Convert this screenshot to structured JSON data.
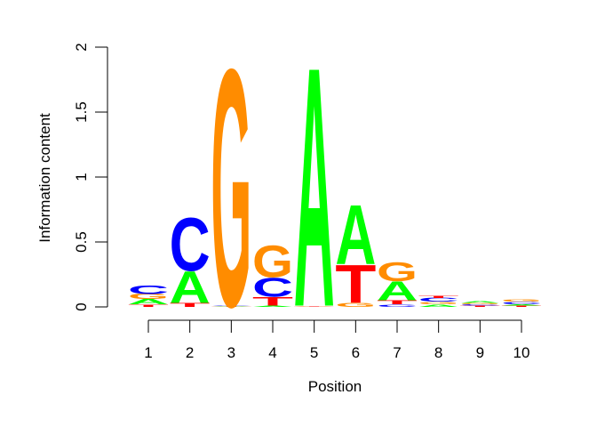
{
  "chart_data": {
    "type": "sequence-logo",
    "xlabel": "Position",
    "ylabel": "Information content",
    "ylim": [
      0,
      2
    ],
    "yticks": [
      "0",
      "0.5",
      "1",
      "1.5",
      "2"
    ],
    "positions": [
      "1",
      "2",
      "3",
      "4",
      "5",
      "6",
      "7",
      "8",
      "9",
      "10"
    ],
    "colors": {
      "A": "#00FF00",
      "C": "#0000FF",
      "G": "#FF8C00",
      "T": "#FF0000"
    },
    "stacks": [
      [
        {
          "letter": "T",
          "value": 0.02
        },
        {
          "letter": "A",
          "value": 0.04
        },
        {
          "letter": "G",
          "value": 0.04
        },
        {
          "letter": "C",
          "value": 0.07
        }
      ],
      [
        {
          "letter": "T",
          "value": 0.03
        },
        {
          "letter": "A",
          "value": 0.25
        },
        {
          "letter": "C",
          "value": 0.42
        }
      ],
      [
        {
          "letter": "T",
          "value": 0.003
        },
        {
          "letter": "A",
          "value": 0.005
        },
        {
          "letter": "C",
          "value": 0.005
        },
        {
          "letter": "G",
          "value": 1.88
        }
      ],
      [
        {
          "letter": "A",
          "value": 0.01
        },
        {
          "letter": "T",
          "value": 0.07
        },
        {
          "letter": "C",
          "value": 0.15
        },
        {
          "letter": "G",
          "value": 0.25
        }
      ],
      [
        {
          "letter": "C",
          "value": 0.002
        },
        {
          "letter": "G",
          "value": 0.003
        },
        {
          "letter": "T",
          "value": 0.005
        },
        {
          "letter": "A",
          "value": 1.9
        }
      ],
      [
        {
          "letter": "G",
          "value": 0.03
        },
        {
          "letter": "T",
          "value": 0.3
        },
        {
          "letter": "A",
          "value": 0.47
        }
      ],
      [
        {
          "letter": "C",
          "value": 0.02
        },
        {
          "letter": "T",
          "value": 0.03
        },
        {
          "letter": "A",
          "value": 0.15
        },
        {
          "letter": "G",
          "value": 0.15
        }
      ],
      [
        {
          "letter": "A",
          "value": 0.02
        },
        {
          "letter": "G",
          "value": 0.02
        },
        {
          "letter": "C",
          "value": 0.03
        },
        {
          "letter": "T",
          "value": 0.02
        }
      ],
      [
        {
          "letter": "T",
          "value": 0.01
        },
        {
          "letter": "C",
          "value": 0.01
        },
        {
          "letter": "G",
          "value": 0.01
        },
        {
          "letter": "A",
          "value": 0.015
        }
      ],
      [
        {
          "letter": "T",
          "value": 0.01
        },
        {
          "letter": "A",
          "value": 0.01
        },
        {
          "letter": "C",
          "value": 0.02
        },
        {
          "letter": "G",
          "value": 0.02
        }
      ]
    ]
  }
}
